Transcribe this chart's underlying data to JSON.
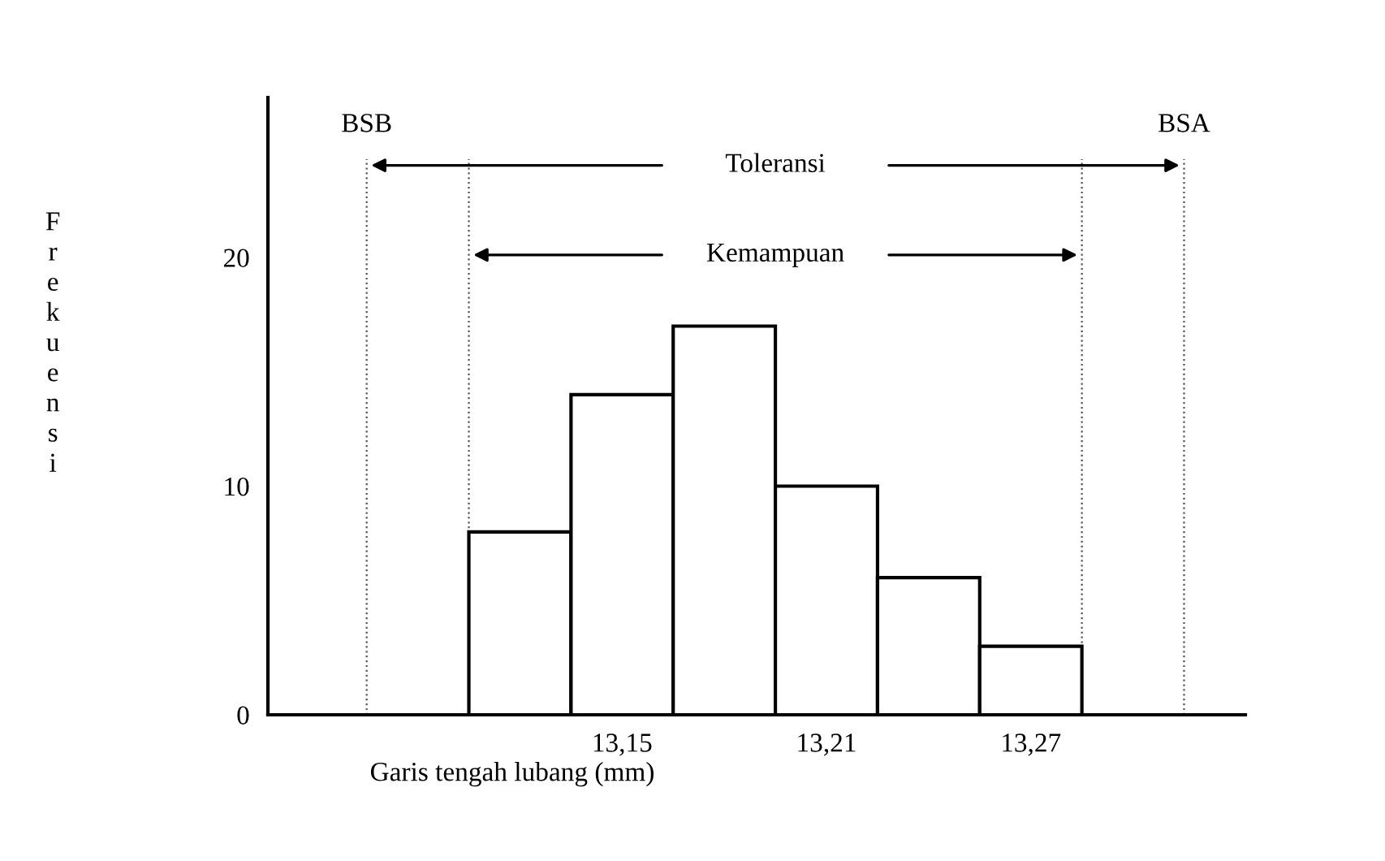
{
  "chart_data": {
    "type": "histogram",
    "bins": [
      13.105,
      13.135,
      13.165,
      13.195,
      13.225,
      13.255,
      13.285
    ],
    "values": [
      8,
      14,
      17,
      10,
      6,
      3
    ],
    "color": "#ffffff",
    "xlabel": "Garis tengah lubang (mm)",
    "ylabel": "Frekuensi",
    "xlim": [
      13.046,
      13.333
    ],
    "ylim": [
      0,
      27
    ],
    "xticks": [
      {
        "value": 13.15,
        "label": "13,15"
      },
      {
        "value": 13.21,
        "label": "13,21"
      },
      {
        "value": 13.27,
        "label": "13,27"
      }
    ],
    "yticks": [
      0,
      10,
      20
    ],
    "ref_lines": [
      {
        "axis": "x",
        "value": 13.075,
        "label": "BSB",
        "line_style": "dotted"
      },
      {
        "axis": "x",
        "value": 13.315,
        "label": "BSA",
        "line_style": "dotted"
      },
      {
        "axis": "x",
        "value": 13.105,
        "line_style": "dotted"
      },
      {
        "axis": "x",
        "value": 13.285,
        "line_style": "dotted"
      }
    ],
    "annotations": [
      "Toleransi",
      "Kemampuan"
    ],
    "grid": false,
    "legend": false
  }
}
